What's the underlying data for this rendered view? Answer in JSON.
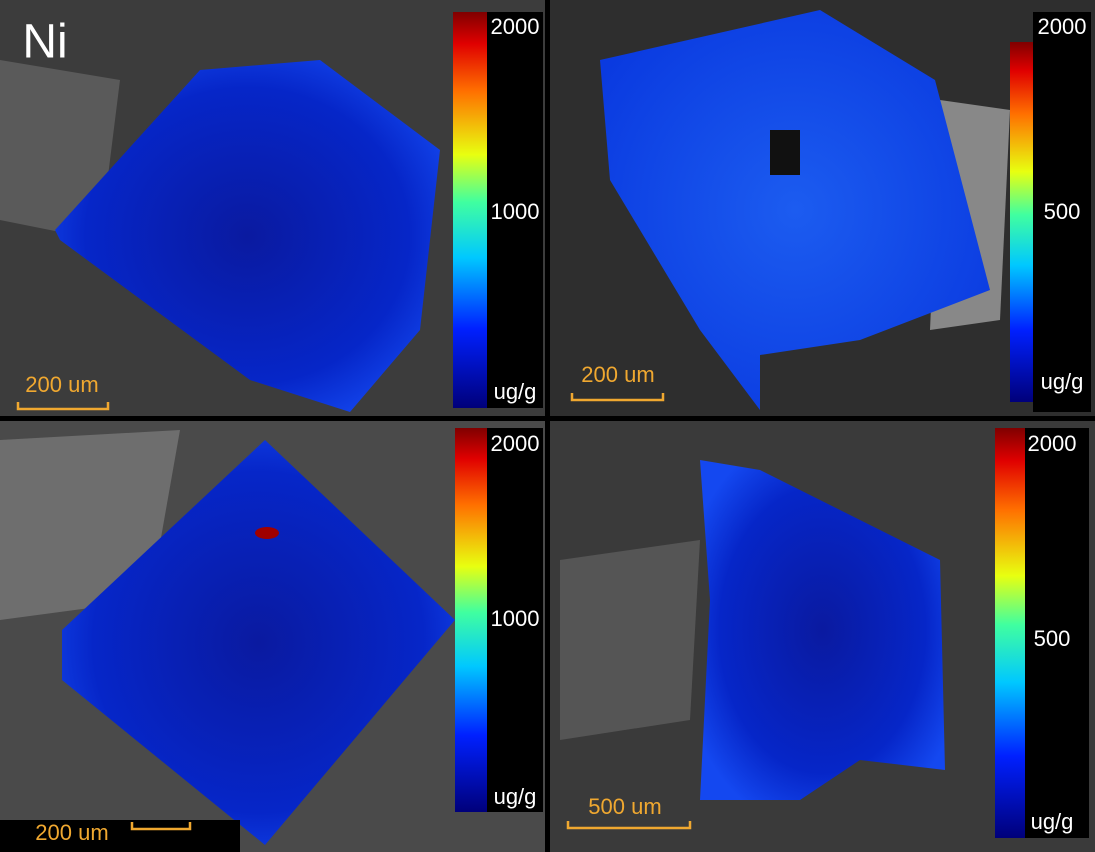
{
  "element": "Ni",
  "panels": [
    {
      "colorbar": {
        "top": "2000",
        "middle": "1000",
        "unit": "ug/g"
      },
      "scale_bar": "200 um"
    },
    {
      "colorbar": {
        "top": "2000",
        "middle": "500",
        "unit": "ug/g"
      },
      "scale_bar": "200 um"
    },
    {
      "colorbar": {
        "top": "2000",
        "middle": "1000",
        "unit": "ug/g"
      },
      "scale_bar": "200 um"
    },
    {
      "colorbar": {
        "top": "2000",
        "middle": "500",
        "unit": "ug/g"
      },
      "scale_bar": "500 um"
    }
  ]
}
